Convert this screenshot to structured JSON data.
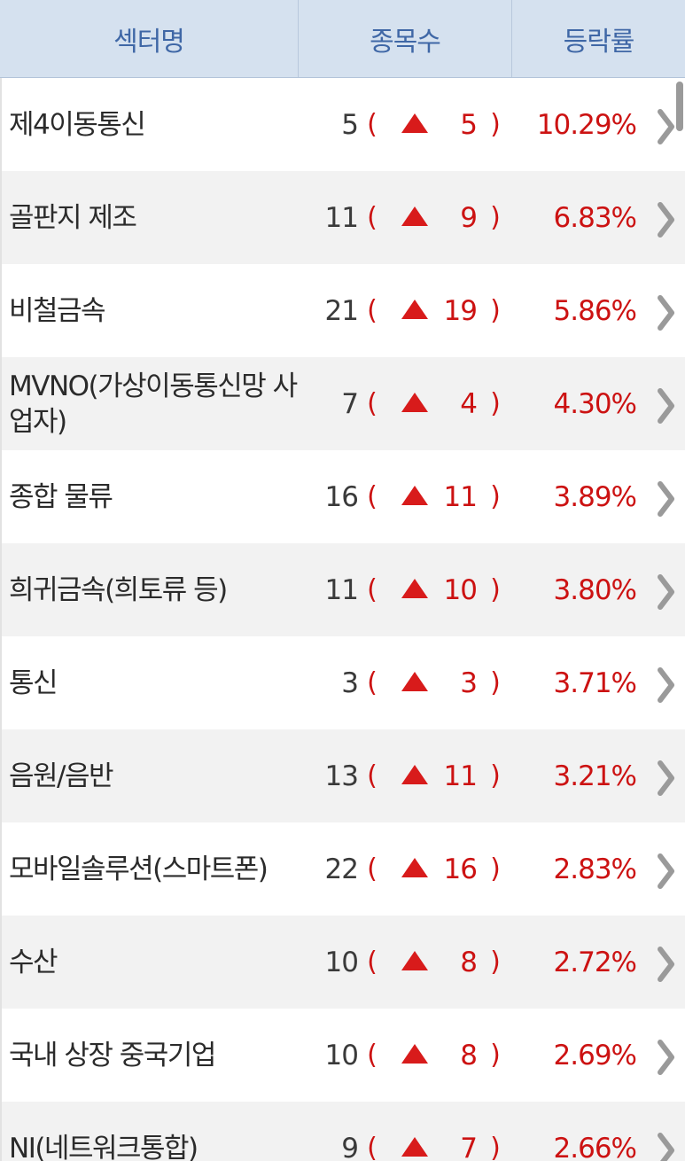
{
  "header": {
    "sector_label": "섹터명",
    "count_label": "종목수",
    "rate_label": "등락률"
  },
  "colors": {
    "header_bg": "#d5e1ef",
    "header_text": "#3f67a6",
    "up_red": "#cc1212"
  },
  "icons": {
    "up": "up-triangle-icon",
    "row_link": "chevron-right-icon"
  },
  "rows": [
    {
      "name": "제4이동통신",
      "total": "5",
      "up": "5",
      "rate": "10.29%"
    },
    {
      "name": "골판지 제조",
      "total": "11",
      "up": "9",
      "rate": "6.83%"
    },
    {
      "name": "비철금속",
      "total": "21",
      "up": "19",
      "rate": "5.86%"
    },
    {
      "name": "MVNO(가상이동통신망 사업자)",
      "total": "7",
      "up": "4",
      "rate": "4.30%"
    },
    {
      "name": "종합 물류",
      "total": "16",
      "up": "11",
      "rate": "3.89%"
    },
    {
      "name": "희귀금속(희토류 등)",
      "total": "11",
      "up": "10",
      "rate": "3.80%"
    },
    {
      "name": "통신",
      "total": "3",
      "up": "3",
      "rate": "3.71%"
    },
    {
      "name": "음원/음반",
      "total": "13",
      "up": "11",
      "rate": "3.21%"
    },
    {
      "name": "모바일솔루션(스마트폰)",
      "total": "22",
      "up": "16",
      "rate": "2.83%"
    },
    {
      "name": "수산",
      "total": "10",
      "up": "8",
      "rate": "2.72%"
    },
    {
      "name": "국내 상장 중국기업",
      "total": "10",
      "up": "8",
      "rate": "2.69%"
    },
    {
      "name": "NI(네트워크통합)",
      "total": "9",
      "up": "7",
      "rate": "2.66%"
    }
  ],
  "paren_open": "(",
  "paren_close": ")"
}
